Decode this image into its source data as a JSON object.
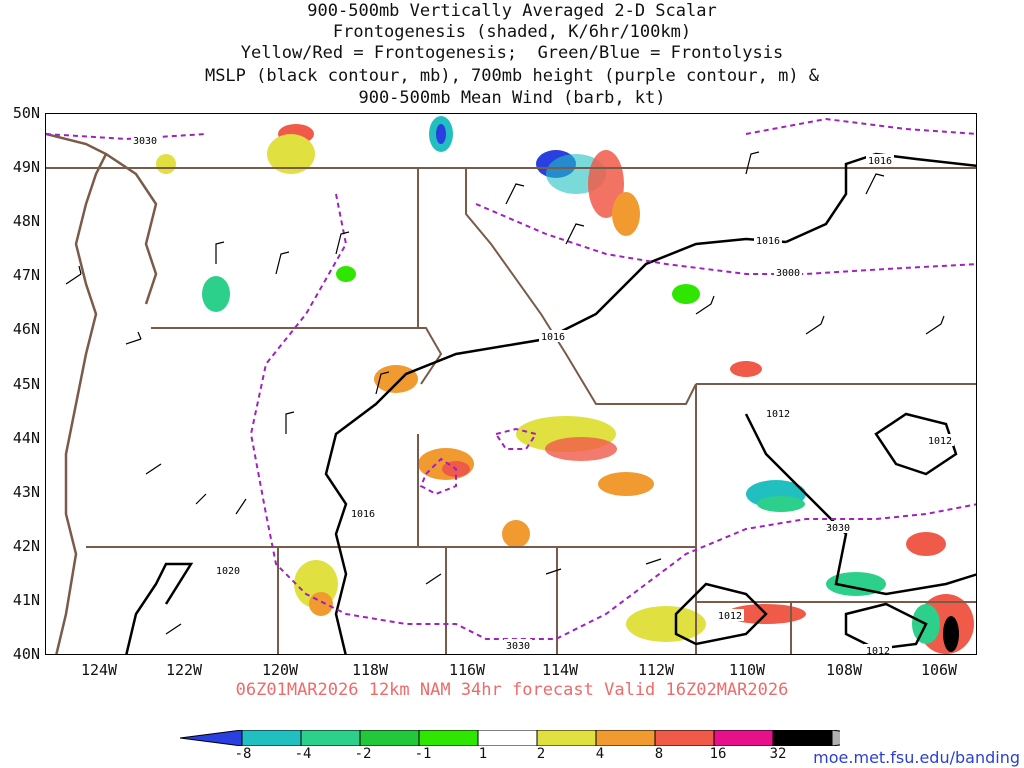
{
  "title": {
    "line1": "900-500mb Vertically Averaged 2-D Scalar",
    "line2": "Frontogenesis (shaded, K/6hr/100km)",
    "line3": "Yellow/Red = Frontogenesis;  Green/Blue = Frontolysis",
    "line4": "MSLP (black contour, mb), 700mb height (purple contour, m) &",
    "line5": "900-500mb Mean Wind (barb, kt)"
  },
  "latitude_labels": [
    "50N",
    "49N",
    "48N",
    "47N",
    "46N",
    "45N",
    "44N",
    "43N",
    "42N",
    "41N",
    "40N"
  ],
  "longitude_labels": [
    "124W",
    "122W",
    "120W",
    "118W",
    "116W",
    "114W",
    "112W",
    "110W",
    "108W",
    "106W"
  ],
  "contour_labels": {
    "height": [
      "3030",
      "3000",
      "3030",
      "3030"
    ],
    "pressure": [
      "1016",
      "1016",
      "1016",
      "1016",
      "1012",
      "1012",
      "1020",
      "1012",
      "1012"
    ]
  },
  "valid_line": "06Z01MAR2026 12km NAM 34hr forecast Valid 16Z02MAR2026",
  "colorbar": {
    "labels": [
      "-8",
      "-4",
      "-2",
      "-1",
      "1",
      "2",
      "4",
      "8",
      "16",
      "32"
    ],
    "colors": [
      "#2a3fe0",
      "#22bfc0",
      "#2cd08a",
      "#22c83a",
      "#2ee600",
      "#ffffff",
      "#e0e040",
      "#f09a30",
      "#f05a48",
      "#e8108a",
      "#000000",
      "#b0b0b0"
    ]
  },
  "credit": "moe.met.fsu.edu/banding"
}
